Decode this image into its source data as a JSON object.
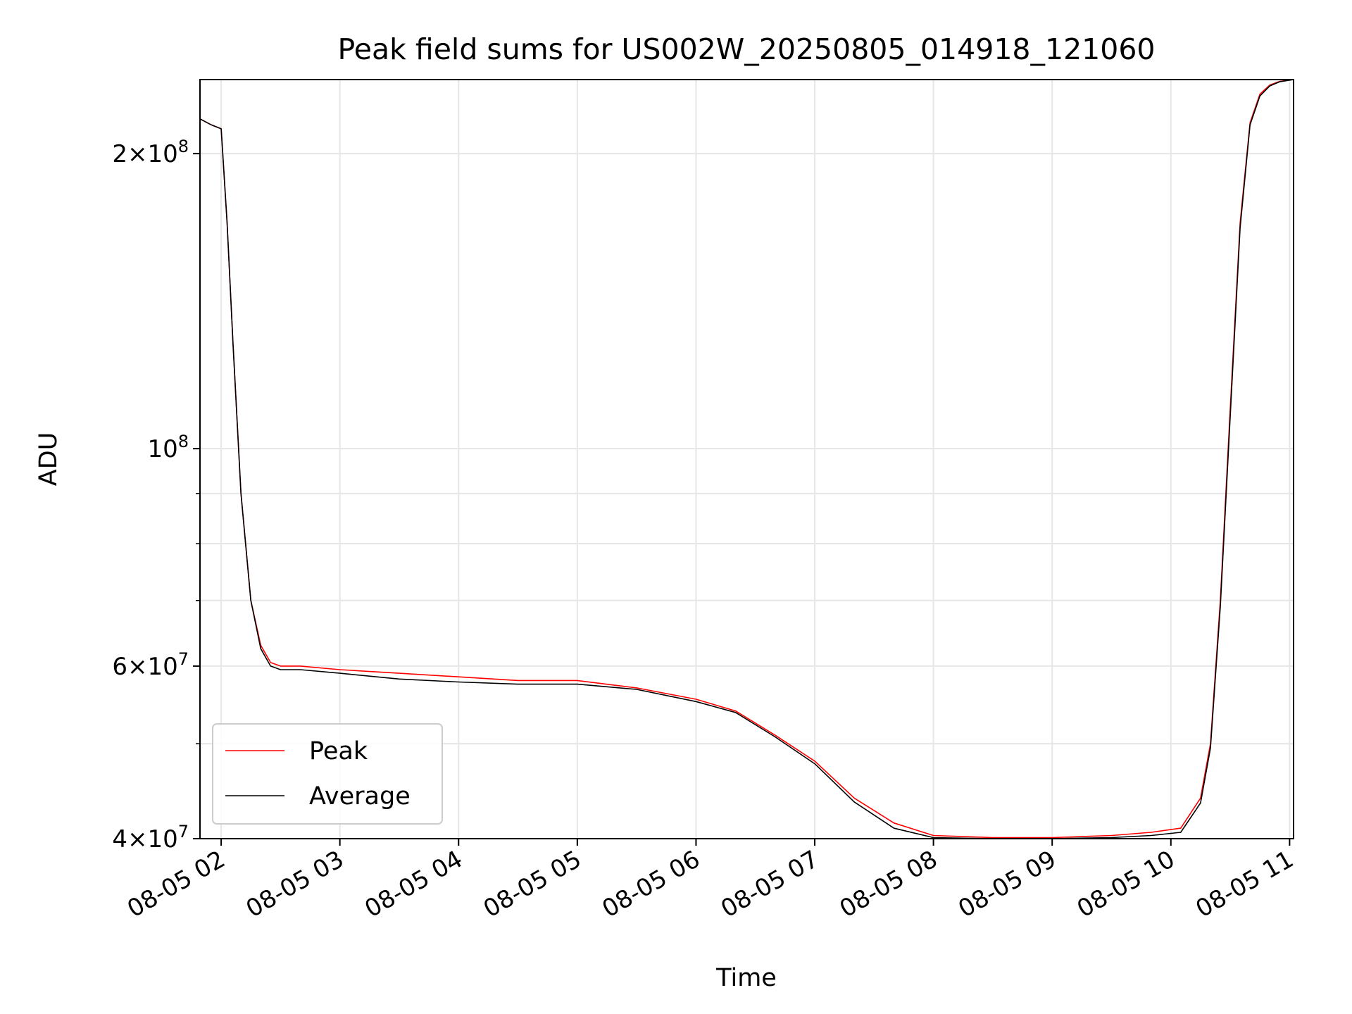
{
  "chart_data": {
    "type": "line",
    "title": "Peak field sums for US002W_20250805_014918_121060",
    "xlabel": "Time",
    "ylabel": "ADU",
    "y_scale": "log",
    "ylim": [
      40000000,
      238000000
    ],
    "xlim": [
      "2025-08-05T01:49:18",
      "2025-08-05T11:02:00"
    ],
    "x_ticks": [
      "08-05 02",
      "08-05 03",
      "08-05 04",
      "08-05 05",
      "08-05 06",
      "08-05 07",
      "08-05 08",
      "08-05 09",
      "08-05 10",
      "08-05 11"
    ],
    "y_ticks": [
      {
        "value": 40000000,
        "mantissa": "4",
        "exponent": "7"
      },
      {
        "value": 60000000,
        "mantissa": "6",
        "exponent": "7"
      },
      {
        "value": 100000000,
        "mantissa": "",
        "exponent": "8"
      },
      {
        "value": 200000000,
        "mantissa": "2",
        "exponent": "8"
      }
    ],
    "grid": true,
    "legend_position": "lower-left",
    "series": [
      {
        "name": "Peak",
        "color": "#ff0000",
        "x": [
          "2025-08-05T01:49:18",
          "2025-08-05T01:55:00",
          "2025-08-05T02:00:00",
          "2025-08-05T02:03:00",
          "2025-08-05T02:06:00",
          "2025-08-05T02:10:00",
          "2025-08-05T02:15:00",
          "2025-08-05T02:20:00",
          "2025-08-05T02:25:00",
          "2025-08-05T02:30:00",
          "2025-08-05T02:40:00",
          "2025-08-05T03:00:00",
          "2025-08-05T03:30:00",
          "2025-08-05T04:00:00",
          "2025-08-05T04:30:00",
          "2025-08-05T05:00:00",
          "2025-08-05T05:30:00",
          "2025-08-05T06:00:00",
          "2025-08-05T06:20:00",
          "2025-08-05T06:40:00",
          "2025-08-05T07:00:00",
          "2025-08-05T07:20:00",
          "2025-08-05T07:40:00",
          "2025-08-05T08:00:00",
          "2025-08-05T08:30:00",
          "2025-08-05T09:00:00",
          "2025-08-05T09:30:00",
          "2025-08-05T09:50:00",
          "2025-08-05T10:05:00",
          "2025-08-05T10:15:00",
          "2025-08-05T10:20:00",
          "2025-08-05T10:25:00",
          "2025-08-05T10:30:00",
          "2025-08-05T10:35:00",
          "2025-08-05T10:40:00",
          "2025-08-05T10:45:00",
          "2025-08-05T10:50:00",
          "2025-08-05T10:55:00",
          "2025-08-05T11:02:00"
        ],
        "values": [
          217000000,
          214000000,
          212000000,
          170000000,
          128000000,
          90000000,
          70000000,
          63000000,
          60500000,
          60000000,
          60000000,
          59500000,
          59000000,
          58500000,
          58000000,
          58000000,
          57000000,
          55500000,
          54000000,
          51000000,
          48000000,
          44000000,
          41500000,
          40300000,
          40100000,
          40100000,
          40300000,
          40600000,
          41000000,
          44000000,
          50000000,
          70000000,
          110000000,
          170000000,
          215000000,
          230000000,
          235000000,
          237000000,
          238000000
        ]
      },
      {
        "name": "Average",
        "color": "#000000",
        "x": [
          "2025-08-05T01:49:18",
          "2025-08-05T01:55:00",
          "2025-08-05T02:00:00",
          "2025-08-05T02:03:00",
          "2025-08-05T02:06:00",
          "2025-08-05T02:10:00",
          "2025-08-05T02:15:00",
          "2025-08-05T02:20:00",
          "2025-08-05T02:25:00",
          "2025-08-05T02:30:00",
          "2025-08-05T02:40:00",
          "2025-08-05T03:00:00",
          "2025-08-05T03:30:00",
          "2025-08-05T04:00:00",
          "2025-08-05T04:30:00",
          "2025-08-05T05:00:00",
          "2025-08-05T05:30:00",
          "2025-08-05T06:00:00",
          "2025-08-05T06:20:00",
          "2025-08-05T06:40:00",
          "2025-08-05T07:00:00",
          "2025-08-05T07:20:00",
          "2025-08-05T07:40:00",
          "2025-08-05T08:00:00",
          "2025-08-05T08:30:00",
          "2025-08-05T09:00:00",
          "2025-08-05T09:30:00",
          "2025-08-05T09:50:00",
          "2025-08-05T10:05:00",
          "2025-08-05T10:15:00",
          "2025-08-05T10:20:00",
          "2025-08-05T10:25:00",
          "2025-08-05T10:30:00",
          "2025-08-05T10:35:00",
          "2025-08-05T10:40:00",
          "2025-08-05T10:45:00",
          "2025-08-05T10:50:00",
          "2025-08-05T10:55:00",
          "2025-08-05T11:02:00"
        ],
        "values": [
          217000000,
          214000000,
          212000000,
          170000000,
          128000000,
          90000000,
          70000000,
          62500000,
          60000000,
          59500000,
          59500000,
          59000000,
          58200000,
          57800000,
          57500000,
          57500000,
          56800000,
          55200000,
          53800000,
          50800000,
          47700000,
          43600000,
          41000000,
          40100000,
          40000000,
          40000000,
          40100000,
          40300000,
          40600000,
          43500000,
          49500000,
          69000000,
          108000000,
          168000000,
          214000000,
          229000000,
          234500000,
          236800000,
          238000000
        ]
      }
    ]
  }
}
